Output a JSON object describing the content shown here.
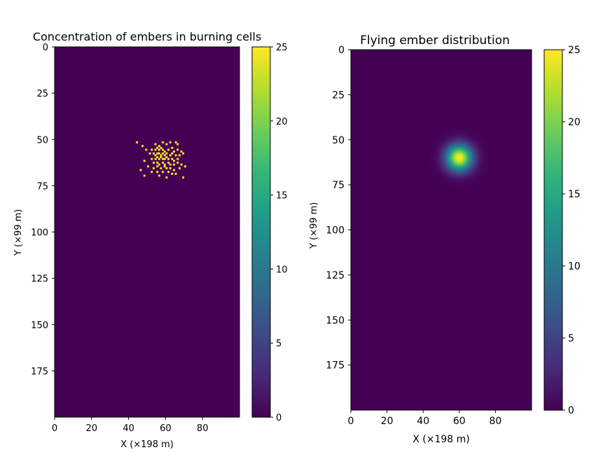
{
  "chart_data": [
    {
      "type": "heatmap",
      "title": "Concentration of embers in burning cells",
      "xlabel": "X (×198 m)",
      "ylabel": "Y (×99 m)",
      "xlim": [
        0,
        100
      ],
      "ylim": [
        200,
        0
      ],
      "xticks": [
        "0",
        "20",
        "40",
        "60",
        "80"
      ],
      "yticks": [
        "0",
        "25",
        "50",
        "75",
        "100",
        "125",
        "150",
        "175"
      ],
      "colormap": "viridis",
      "clim": [
        0,
        25
      ],
      "colorbar_ticks": [
        "0",
        "5",
        "10",
        "15",
        "20",
        "25"
      ],
      "background_value": 0,
      "description_values": "scattered saturated cells (value 25) around x≈44–70, y≈51–70",
      "hot_cells": [
        [
          44,
          51
        ],
        [
          47,
          53
        ],
        [
          49,
          55
        ],
        [
          54,
          52
        ],
        [
          56,
          53
        ],
        [
          58,
          51
        ],
        [
          60,
          52
        ],
        [
          62,
          51
        ],
        [
          65,
          51
        ],
        [
          66,
          52
        ],
        [
          52,
          55
        ],
        [
          54,
          55
        ],
        [
          55,
          54
        ],
        [
          56,
          55
        ],
        [
          57,
          54
        ],
        [
          58,
          55
        ],
        [
          59,
          56
        ],
        [
          61,
          55
        ],
        [
          63,
          54
        ],
        [
          64,
          56
        ],
        [
          66,
          55
        ],
        [
          68,
          56
        ],
        [
          51,
          57
        ],
        [
          53,
          57
        ],
        [
          54,
          58
        ],
        [
          55,
          57
        ],
        [
          56,
          57
        ],
        [
          57,
          58
        ],
        [
          58,
          57
        ],
        [
          59,
          58
        ],
        [
          60,
          57
        ],
        [
          62,
          58
        ],
        [
          63,
          57
        ],
        [
          65,
          58
        ],
        [
          67,
          58
        ],
        [
          69,
          57
        ],
        [
          52,
          60
        ],
        [
          54,
          60
        ],
        [
          55,
          59
        ],
        [
          56,
          60
        ],
        [
          57,
          59
        ],
        [
          58,
          60
        ],
        [
          59,
          60
        ],
        [
          60,
          59
        ],
        [
          61,
          60
        ],
        [
          63,
          60
        ],
        [
          64,
          61
        ],
        [
          66,
          60
        ],
        [
          48,
          61
        ],
        [
          53,
          62
        ],
        [
          55,
          62
        ],
        [
          56,
          63
        ],
        [
          58,
          62
        ],
        [
          59,
          63
        ],
        [
          61,
          62
        ],
        [
          62,
          63
        ],
        [
          64,
          63
        ],
        [
          66,
          62
        ],
        [
          68,
          63
        ],
        [
          50,
          64
        ],
        [
          53,
          65
        ],
        [
          55,
          64
        ],
        [
          57,
          65
        ],
        [
          59,
          64
        ],
        [
          60,
          65
        ],
        [
          62,
          65
        ],
        [
          64,
          66
        ],
        [
          67,
          65
        ],
        [
          52,
          67
        ],
        [
          55,
          67
        ],
        [
          58,
          67
        ],
        [
          61,
          67
        ],
        [
          63,
          68
        ],
        [
          65,
          68
        ],
        [
          48,
          69
        ],
        [
          56,
          69
        ],
        [
          60,
          70
        ],
        [
          69,
          70
        ],
        [
          46,
          66
        ],
        [
          70,
          64
        ]
      ]
    },
    {
      "type": "heatmap",
      "title": "Flying ember distribution",
      "xlabel": "X (×198 m)",
      "ylabel": "Y (×99 m)",
      "xlim": [
        0,
        100
      ],
      "ylim": [
        200,
        0
      ],
      "xticks": [
        "0",
        "20",
        "40",
        "60",
        "80"
      ],
      "yticks": [
        "0",
        "25",
        "50",
        "75",
        "100",
        "125",
        "150",
        "175"
      ],
      "colormap": "viridis",
      "clim": [
        0,
        25
      ],
      "colorbar_ticks": [
        "0",
        "5",
        "10",
        "15",
        "20",
        "25"
      ],
      "gaussian_center": [
        60,
        60
      ],
      "gaussian_sigma": [
        5,
        5
      ],
      "peak_value": 25
    }
  ],
  "colors": {
    "viridis": [
      "#440154",
      "#482878",
      "#3e4989",
      "#31688e",
      "#26828e",
      "#1f9e89",
      "#35b779",
      "#6ece58",
      "#b5de2b",
      "#fde725"
    ]
  }
}
